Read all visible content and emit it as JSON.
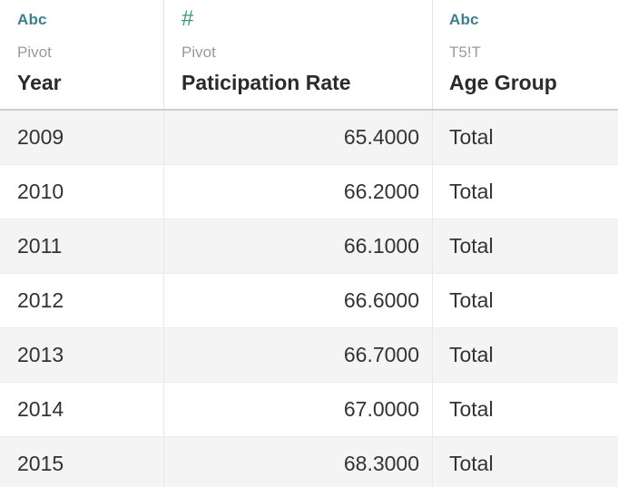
{
  "columns": [
    {
      "type_icon": "Abc",
      "type_icon_name": "string-type-icon",
      "source": "Pivot",
      "name": "Year"
    },
    {
      "type_icon": "#",
      "type_icon_name": "number-type-icon",
      "source": "Pivot",
      "name": "Paticipation Rate"
    },
    {
      "type_icon": "Abc",
      "type_icon_name": "string-type-icon",
      "source": "T5!T",
      "name": "Age Group"
    }
  ],
  "rows": [
    {
      "year": "2009",
      "rate": "65.4000",
      "age_group": "Total"
    },
    {
      "year": "2010",
      "rate": "66.2000",
      "age_group": "Total"
    },
    {
      "year": "2011",
      "rate": "66.1000",
      "age_group": "Total"
    },
    {
      "year": "2012",
      "rate": "66.6000",
      "age_group": "Total"
    },
    {
      "year": "2013",
      "rate": "66.7000",
      "age_group": "Total"
    },
    {
      "year": "2014",
      "rate": "67.0000",
      "age_group": "Total"
    },
    {
      "year": "2015",
      "rate": "68.3000",
      "age_group": "Total"
    }
  ],
  "colors": {
    "string_icon": "#3d7f8f",
    "number_icon": "#3a9a6c",
    "shaded_row": "#f4f4f4"
  }
}
